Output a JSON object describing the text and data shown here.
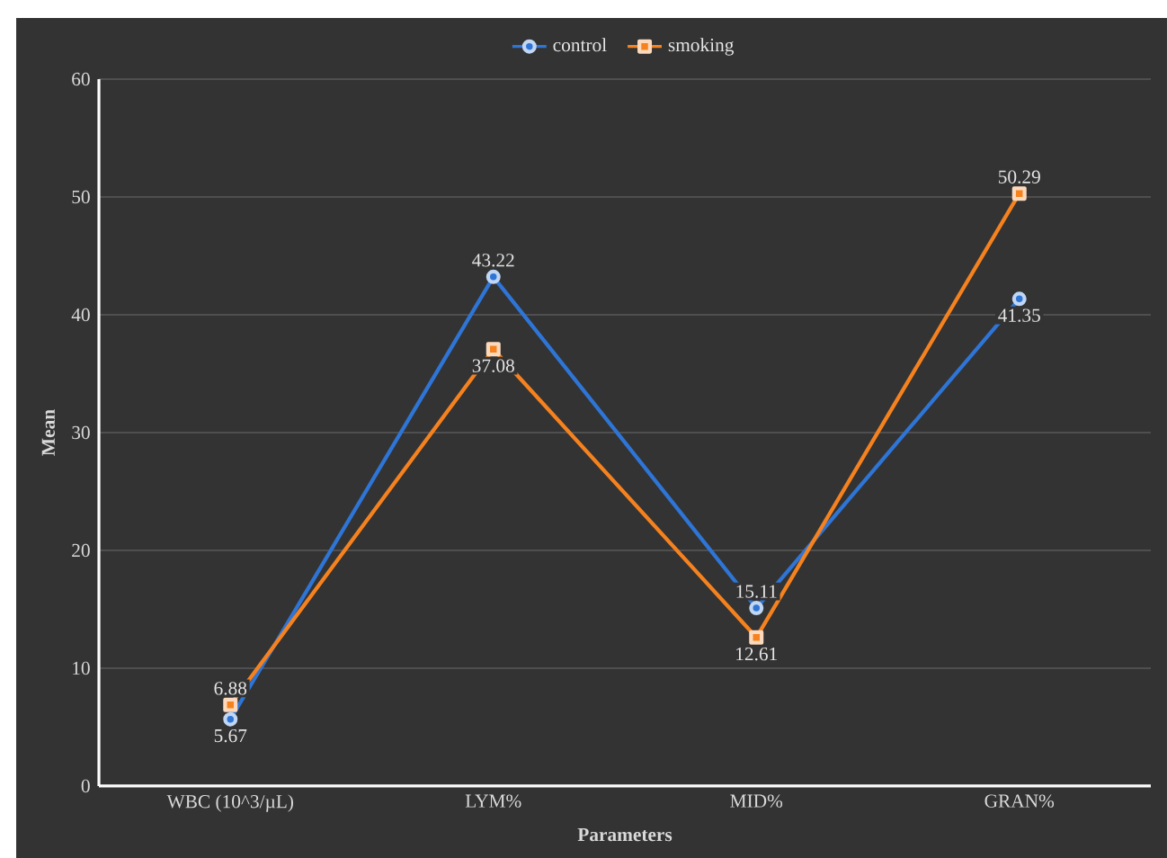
{
  "chart_data": {
    "type": "line",
    "categories": [
      "WBC (10^3/µL)",
      "LYM%",
      "MID%",
      "GRAN%"
    ],
    "series": [
      {
        "name": "control",
        "color": "#2e75d6",
        "values": [
          5.67,
          43.22,
          15.11,
          41.35
        ],
        "marker": "circle"
      },
      {
        "name": "smoking",
        "color": "#f5821f",
        "values": [
          6.88,
          37.08,
          12.61,
          50.29
        ],
        "marker": "square"
      }
    ],
    "xlabel": "Parameters",
    "ylabel": "Mean",
    "ylim": [
      0,
      60
    ],
    "yticks": [
      0,
      10,
      20,
      30,
      40,
      50,
      60
    ],
    "grid": "y",
    "legend": "top",
    "data_labels": true
  }
}
